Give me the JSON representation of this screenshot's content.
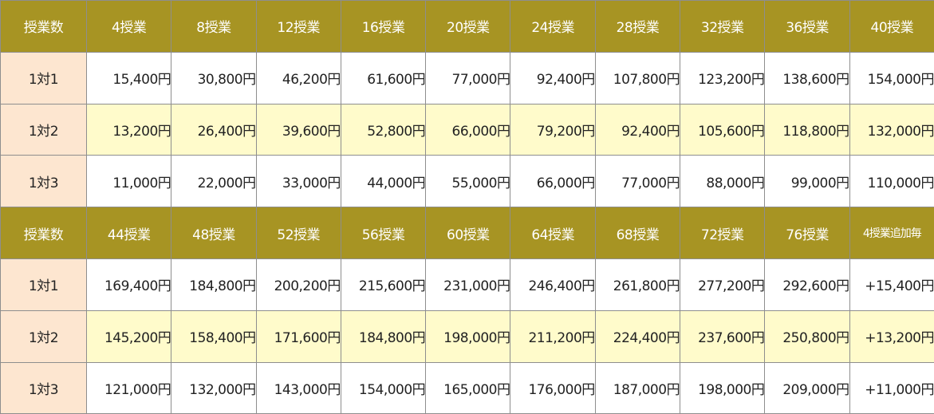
{
  "sections": [
    {
      "header": [
        "授業数",
        "4授業",
        "8授業",
        "12授業",
        "16授業",
        "20授業",
        "24授業",
        "28授業",
        "32授業",
        "36授業",
        "40授業"
      ],
      "rows": [
        {
          "label": "1対1",
          "values": [
            "15,400円",
            "30,800円",
            "46,200円",
            "61,600円",
            "77,000円",
            "92,400円",
            "107,800円",
            "123,200円",
            "138,600円",
            "154,000円"
          ]
        },
        {
          "label": "1対2",
          "values": [
            "13,200円",
            "26,400円",
            "39,600円",
            "52,800円",
            "66,000円",
            "79,200円",
            "92,400円",
            "105,600円",
            "118,800円",
            "132,000円"
          ]
        },
        {
          "label": "1対3",
          "values": [
            "11,000円",
            "22,000円",
            "33,000円",
            "44,000円",
            "55,000円",
            "66,000円",
            "77,000円",
            "88,000円",
            "99,000円",
            "110,000円"
          ]
        }
      ]
    },
    {
      "header": [
        "授業数",
        "44授業",
        "48授業",
        "52授業",
        "56授業",
        "60授業",
        "64授業",
        "68授業",
        "72授業",
        "76授業",
        "4授業追加毎"
      ],
      "rows": [
        {
          "label": "1対1",
          "values": [
            "169,400円",
            "184,800円",
            "200,200円",
            "215,600円",
            "231,000円",
            "246,400円",
            "261,800円",
            "277,200円",
            "292,600円",
            "+15,400円"
          ]
        },
        {
          "label": "1対2",
          "values": [
            "145,200円",
            "158,400円",
            "171,600円",
            "184,800円",
            "198,000円",
            "211,200円",
            "224,400円",
            "237,600円",
            "250,800円",
            "+13,200円"
          ]
        },
        {
          "label": "1対3",
          "values": [
            "121,000円",
            "132,000円",
            "143,000円",
            "154,000円",
            "165,000円",
            "176,000円",
            "187,000円",
            "198,000円",
            "209,000円",
            "+11,000円"
          ]
        }
      ]
    }
  ],
  "colors": {
    "header_bg": "#a79423",
    "header_text": "#ffffff",
    "row_label_bg": "#fde6d0",
    "cream_row_bg": "#fffbcb",
    "white_row_bg": "#ffffff"
  }
}
